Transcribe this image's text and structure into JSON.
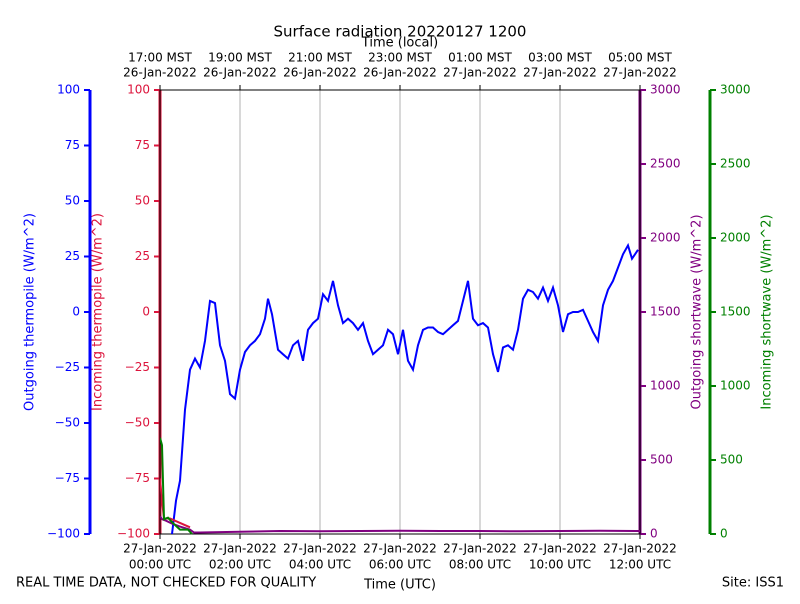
{
  "chart_data": {
    "type": "line",
    "title": "Surface radiation 20220127 1200",
    "xlabel": "Time (UTC)",
    "x2label": "Time (local)",
    "footer_left": "REAL TIME DATA, NOT CHECKED FOR QUALITY",
    "footer_right": "Site: ISS1",
    "grid": true,
    "xlim": [
      0,
      12
    ],
    "xticks": [
      {
        "value": 0,
        "label": [
          "27-Jan-2022",
          "00:00 UTC"
        ]
      },
      {
        "value": 2,
        "label": [
          "27-Jan-2022",
          "02:00 UTC"
        ]
      },
      {
        "value": 4,
        "label": [
          "27-Jan-2022",
          "04:00 UTC"
        ]
      },
      {
        "value": 6,
        "label": [
          "27-Jan-2022",
          "06:00 UTC"
        ]
      },
      {
        "value": 8,
        "label": [
          "27-Jan-2022",
          "08:00 UTC"
        ]
      },
      {
        "value": 10,
        "label": [
          "27-Jan-2022",
          "10:00 UTC"
        ]
      },
      {
        "value": 12,
        "label": [
          "27-Jan-2022",
          "12:00 UTC"
        ]
      }
    ],
    "x2ticks": [
      {
        "value": 0,
        "label": [
          "17:00 MST",
          "26-Jan-2022"
        ]
      },
      {
        "value": 2,
        "label": [
          "19:00 MST",
          "26-Jan-2022"
        ]
      },
      {
        "value": 4,
        "label": [
          "21:00 MST",
          "26-Jan-2022"
        ]
      },
      {
        "value": 6,
        "label": [
          "23:00 MST",
          "26-Jan-2022"
        ]
      },
      {
        "value": 8,
        "label": [
          "01:00 MST",
          "27-Jan-2022"
        ]
      },
      {
        "value": 10,
        "label": [
          "03:00 MST",
          "27-Jan-2022"
        ]
      },
      {
        "value": 12,
        "label": [
          "05:00 MST",
          "27-Jan-2022"
        ]
      }
    ],
    "axes": [
      {
        "label": "Outgoing thermopile (W/m^2)",
        "color": "#0000ff",
        "ylim": [
          -100,
          100
        ],
        "yticks": [
          {
            "value": -100,
            "label": "−100"
          },
          {
            "value": -75,
            "label": "−75"
          },
          {
            "value": -50,
            "label": "−50"
          },
          {
            "value": -25,
            "label": "−25"
          },
          0,
          25,
          50,
          75,
          100
        ]
      },
      {
        "label": "Incoming thermopile (W/m^2)",
        "color": "#dc143c",
        "ylim": [
          -100,
          100
        ],
        "yticks": [
          {
            "value": -100,
            "label": "−100"
          },
          {
            "value": -75,
            "label": "−75"
          },
          {
            "value": -50,
            "label": "−50"
          },
          {
            "value": -25,
            "label": "−25"
          },
          0,
          25,
          50,
          75,
          100
        ]
      },
      {
        "label": "Outgoing shortwave (W/m^2)",
        "color": "#800080",
        "ylim": [
          0,
          3000
        ],
        "yticks": [
          0,
          500,
          1000,
          1500,
          2000,
          2500,
          3000
        ]
      },
      {
        "label": "Incoming shortwave (W/m^2)",
        "color": "#008000",
        "ylim": [
          0,
          3000
        ],
        "yticks": [
          0,
          500,
          1000,
          1500,
          2000,
          2500,
          3000
        ]
      }
    ],
    "series": [
      {
        "axis": 0,
        "color": "#0000ff",
        "x": [
          0.3,
          0.4,
          0.5,
          0.625,
          0.75,
          0.875,
          1.0,
          1.125,
          1.25,
          1.375,
          1.5,
          1.625,
          1.75,
          1.875,
          2.0,
          2.125,
          2.25,
          2.375,
          2.5,
          2.625,
          2.7,
          2.8,
          2.95,
          3.075,
          3.2,
          3.325,
          3.45,
          3.575,
          3.7,
          3.825,
          3.95,
          4.075,
          4.2,
          4.325,
          4.45,
          4.575,
          4.7,
          4.825,
          4.95,
          5.075,
          5.2,
          5.325,
          5.45,
          5.575,
          5.7,
          5.825,
          5.95,
          6.075,
          6.2,
          6.325,
          6.45,
          6.575,
          6.7,
          6.825,
          6.95,
          7.075,
          7.2,
          7.325,
          7.45,
          7.575,
          7.7,
          7.825,
          7.95,
          8.075,
          8.2,
          8.325,
          8.45,
          8.575,
          8.7,
          8.825,
          8.95,
          9.075,
          9.2,
          9.325,
          9.45,
          9.575,
          9.7,
          9.825,
          9.95,
          10.075,
          10.2,
          10.325,
          10.45,
          10.575,
          10.7,
          10.825,
          10.95,
          11.075,
          11.2,
          11.325,
          11.45,
          11.575,
          11.7,
          11.8,
          11.875,
          11.95
        ],
        "values": [
          -100,
          -85,
          -76,
          -44,
          -26,
          -21,
          -25,
          -13,
          5,
          4,
          -15,
          -22,
          -37,
          -39,
          -26,
          -18,
          -15,
          -13,
          -10,
          -3,
          6,
          -1,
          -17,
          -19,
          -21,
          -15,
          -13,
          -22,
          -8,
          -5,
          -3,
          8,
          5,
          14,
          3,
          -5,
          -3,
          -5,
          -8,
          -5,
          -13,
          -19,
          -17,
          -15,
          -8,
          -10,
          -19,
          -8,
          -22,
          -26,
          -15,
          -8,
          -7,
          -7,
          -9,
          -10,
          -8,
          -6,
          -4,
          5,
          14,
          -3,
          -6,
          -5,
          -7,
          -19,
          -27,
          -16,
          -15,
          -17,
          -8,
          6,
          10,
          9,
          6,
          11,
          5,
          11,
          3,
          -9,
          -1,
          0,
          0,
          1,
          -4,
          -9,
          -13,
          3,
          10,
          14,
          20,
          26,
          30,
          24,
          26,
          28
        ]
      },
      {
        "axis": 1,
        "color": "#dc143c",
        "x": [
          0,
          0.05,
          0.1,
          0.25,
          0.5,
          0.75
        ],
        "values": [
          -75,
          -85,
          -93,
          -93,
          -95,
          -97
        ]
      },
      {
        "axis": 2,
        "color": "#800080",
        "x": [
          0,
          0.05,
          0.15,
          0.3,
          0.5,
          0.75,
          0.85,
          1,
          2,
          3,
          4,
          5,
          6,
          7,
          8,
          9,
          10,
          11,
          12
        ],
        "values": [
          120,
          100,
          90,
          70,
          50,
          30,
          10,
          10,
          15,
          20,
          18,
          20,
          22,
          20,
          20,
          18,
          20,
          22,
          20
        ]
      },
      {
        "axis": 3,
        "color": "#008000",
        "x": [
          0,
          0.05,
          0.1,
          0.2,
          0.3,
          0.5,
          0.7,
          0.8
        ],
        "values": [
          650,
          600,
          100,
          110,
          80,
          30,
          30,
          0
        ]
      }
    ]
  }
}
